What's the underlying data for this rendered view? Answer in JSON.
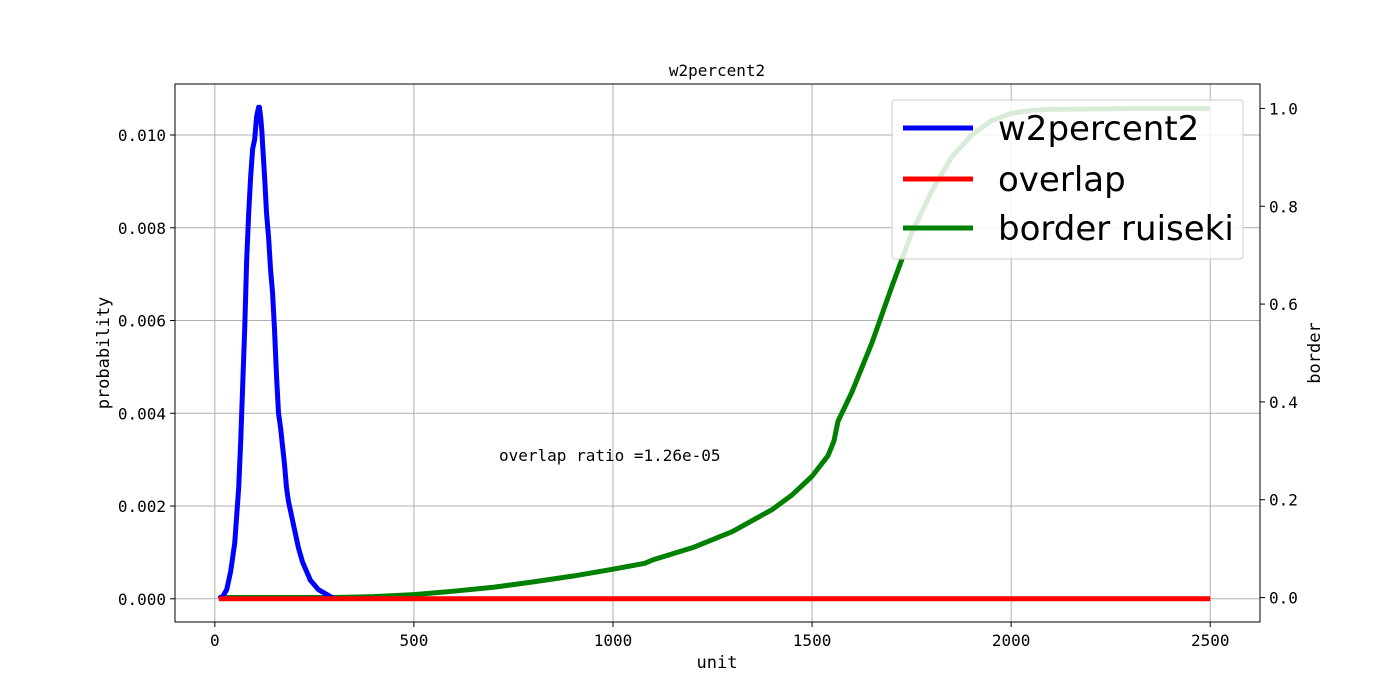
{
  "chart_data": {
    "type": "line",
    "title": "w2percent2",
    "xlabel": "unit",
    "ylabel": "probability",
    "ylabel_right": "border",
    "xlim": [
      -100,
      2625
    ],
    "ylim": [
      -0.0005,
      0.0111
    ],
    "ylim_right": [
      -0.05,
      1.05
    ],
    "xticks": [
      0,
      500,
      1000,
      1500,
      2000,
      2500
    ],
    "xtick_labels": [
      "0",
      "500",
      "1000",
      "1500",
      "2000",
      "2500"
    ],
    "yticks": [
      0.0,
      0.002,
      0.004,
      0.006,
      0.008,
      0.01
    ],
    "ytick_labels": [
      "0.000",
      "0.002",
      "0.004",
      "0.006",
      "0.008",
      "0.010"
    ],
    "yticks_right": [
      0.0,
      0.2,
      0.4,
      0.6,
      0.8,
      1.0
    ],
    "ytick_labels_right": [
      "0.0",
      "0.2",
      "0.4",
      "0.6",
      "0.8",
      "1.0"
    ],
    "grid": true,
    "legend_position": "top-right",
    "annotation": "overlap ratio =1.26e-05",
    "series": [
      {
        "name": "w2percent2",
        "color": "#0000ff",
        "axis": "left",
        "x": [
          10,
          20,
          30,
          40,
          50,
          60,
          65,
          70,
          75,
          80,
          85,
          90,
          95,
          100,
          105,
          110,
          112,
          115,
          118,
          120,
          125,
          130,
          135,
          140,
          145,
          150,
          155,
          160,
          165,
          170,
          175,
          180,
          185,
          190,
          195,
          200,
          210,
          220,
          230,
          240,
          250,
          260,
          270,
          280,
          290,
          300
        ],
        "y": [
          0.0,
          5e-05,
          0.0002,
          0.0006,
          0.0012,
          0.0024,
          0.0034,
          0.0046,
          0.0058,
          0.0073,
          0.0083,
          0.0091,
          0.0097,
          0.0099,
          0.0104,
          0.0106,
          0.0106,
          0.0104,
          0.0101,
          0.0098,
          0.0091,
          0.0083,
          0.0078,
          0.0071,
          0.0066,
          0.0058,
          0.0048,
          0.004,
          0.0037,
          0.0033,
          0.0029,
          0.0024,
          0.0021,
          0.0019,
          0.0017,
          0.0015,
          0.0011,
          0.0008,
          0.0006,
          0.0004,
          0.0003,
          0.0002,
          0.00015,
          0.0001,
          5e-05,
          0.0
        ]
      },
      {
        "name": "overlap",
        "color": "#ff0000",
        "axis": "left",
        "x": [
          10,
          2500
        ],
        "y": [
          0.0,
          0.0
        ]
      },
      {
        "name": "border ruiseki",
        "color": "#008000",
        "axis": "right",
        "x": [
          10,
          300,
          400,
          500,
          600,
          700,
          800,
          900,
          1000,
          1080,
          1100,
          1200,
          1300,
          1400,
          1450,
          1500,
          1540,
          1555,
          1565,
          1600,
          1650,
          1700,
          1750,
          1800,
          1850,
          1900,
          1950,
          2000,
          2050,
          2100,
          2200,
          2300,
          2400,
          2500
        ],
        "y": [
          0.0,
          0.0,
          0.002,
          0.006,
          0.013,
          0.021,
          0.032,
          0.044,
          0.058,
          0.07,
          0.077,
          0.102,
          0.135,
          0.18,
          0.21,
          0.248,
          0.29,
          0.32,
          0.36,
          0.42,
          0.52,
          0.635,
          0.745,
          0.83,
          0.9,
          0.945,
          0.975,
          0.99,
          0.996,
          0.998,
          0.999,
          1.0,
          1.0,
          1.0
        ]
      }
    ]
  }
}
